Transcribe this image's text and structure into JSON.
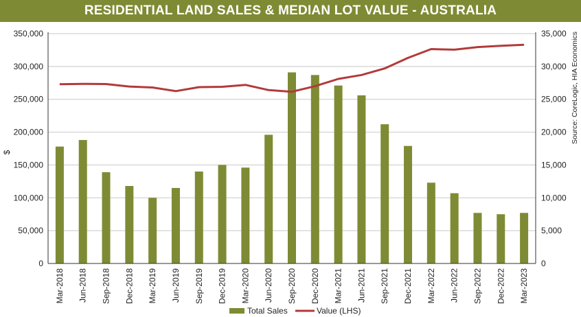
{
  "chart_data": {
    "type": "bar",
    "title": "RESIDENTIAL LAND SALES & MEDIAN LOT VALUE - AUSTRALIA",
    "categories": [
      "Mar-2018",
      "Jun-2018",
      "Sep-2018",
      "Dec-2018",
      "Mar-2019",
      "Jun-2019",
      "Sep-2019",
      "Dec-2019",
      "Mar-2020",
      "Jun-2020",
      "Sep-2020",
      "Dec-2020",
      "Mar-2021",
      "Jun-2021",
      "Sep-2021",
      "Dec-2021",
      "Mar-2022",
      "Jun-2022",
      "Sep-2022",
      "Dec-2022",
      "Mar-2023"
    ],
    "series": [
      {
        "name": "Total Sales",
        "type": "bar",
        "axis": "right",
        "color": "#7f8b34",
        "values": [
          17800,
          18800,
          13900,
          11800,
          10000,
          11500,
          14000,
          15000,
          14600,
          19600,
          29100,
          28700,
          27100,
          25600,
          21200,
          17900,
          12300,
          10700,
          7700,
          7500,
          7700
        ]
      },
      {
        "name": "Value (LHS)",
        "type": "line",
        "axis": "left",
        "color": "#b23a3a",
        "values": [
          273000,
          273500,
          273200,
          269500,
          268000,
          262500,
          268500,
          269000,
          272000,
          264000,
          261500,
          270000,
          281000,
          287000,
          297000,
          313000,
          326500,
          325500,
          329500,
          331500,
          333000
        ]
      }
    ],
    "left_axis": {
      "label": "$",
      "range": [
        0,
        350000
      ],
      "ticks": [
        "0",
        "50,000",
        "100,000",
        "150,000",
        "200,000",
        "250,000",
        "300,000",
        "350,000"
      ]
    },
    "right_axis": {
      "range": [
        0,
        35000
      ],
      "ticks": [
        "0",
        "5,000",
        "10,000",
        "15,000",
        "20,000",
        "25,000",
        "30,000",
        "35,000"
      ]
    },
    "source": "Source: CoreLogic, HIA Economics",
    "grid": true,
    "legend_position": "bottom"
  }
}
